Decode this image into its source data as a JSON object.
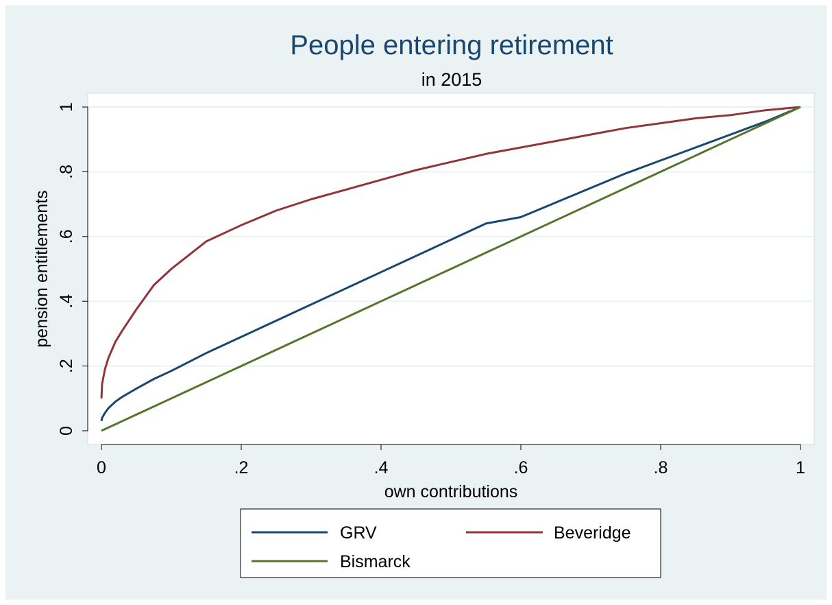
{
  "chart_data": {
    "type": "line",
    "title": "People entering retirement",
    "subtitle": "in 2015",
    "xlabel": "own contributions",
    "ylabel": "pension entitlements",
    "xlim": [
      0,
      1
    ],
    "ylim": [
      0,
      1
    ],
    "x_ticks": [
      {
        "value": 0,
        "label": "0"
      },
      {
        "value": 0.2,
        "label": ".2"
      },
      {
        "value": 0.4,
        "label": ".4"
      },
      {
        "value": 0.6,
        "label": ".6"
      },
      {
        "value": 0.8,
        "label": ".8"
      },
      {
        "value": 1,
        "label": "1"
      }
    ],
    "y_ticks": [
      {
        "value": 0,
        "label": "0"
      },
      {
        "value": 0.2,
        "label": ".2"
      },
      {
        "value": 0.4,
        "label": ".4"
      },
      {
        "value": 0.6,
        "label": ".6"
      },
      {
        "value": 0.8,
        "label": ".8"
      },
      {
        "value": 1,
        "label": "1"
      }
    ],
    "grid": "horizontal",
    "legend_position": "bottom",
    "x": [
      0,
      0.001,
      0.005,
      0.01,
      0.02,
      0.03,
      0.05,
      0.075,
      0.1,
      0.15,
      0.2,
      0.25,
      0.3,
      0.35,
      0.4,
      0.45,
      0.5,
      0.55,
      0.6,
      0.65,
      0.7,
      0.75,
      0.8,
      0.85,
      0.9,
      0.95,
      1
    ],
    "series": [
      {
        "name": "GRV",
        "color": "#1a476f",
        "values": [
          0.03,
          0.04,
          0.055,
          0.07,
          0.09,
          0.105,
          0.13,
          0.16,
          0.185,
          0.24,
          0.29,
          0.34,
          0.39,
          0.44,
          0.49,
          0.54,
          0.59,
          0.64,
          0.66,
          0.705,
          0.75,
          0.795,
          0.835,
          0.875,
          0.915,
          0.955,
          1
        ]
      },
      {
        "name": "Beveridge",
        "color": "#90353b",
        "values": [
          0.1,
          0.145,
          0.19,
          0.225,
          0.275,
          0.31,
          0.375,
          0.45,
          0.5,
          0.585,
          0.635,
          0.68,
          0.715,
          0.745,
          0.775,
          0.805,
          0.83,
          0.855,
          0.875,
          0.895,
          0.915,
          0.935,
          0.95,
          0.965,
          0.975,
          0.99,
          1
        ]
      },
      {
        "name": "Bismarck",
        "color": "#55752f",
        "values": [
          0,
          0.001,
          0.005,
          0.01,
          0.02,
          0.03,
          0.05,
          0.075,
          0.1,
          0.15,
          0.2,
          0.25,
          0.3,
          0.35,
          0.4,
          0.45,
          0.5,
          0.55,
          0.6,
          0.65,
          0.7,
          0.75,
          0.8,
          0.85,
          0.9,
          0.95,
          1
        ]
      }
    ]
  }
}
